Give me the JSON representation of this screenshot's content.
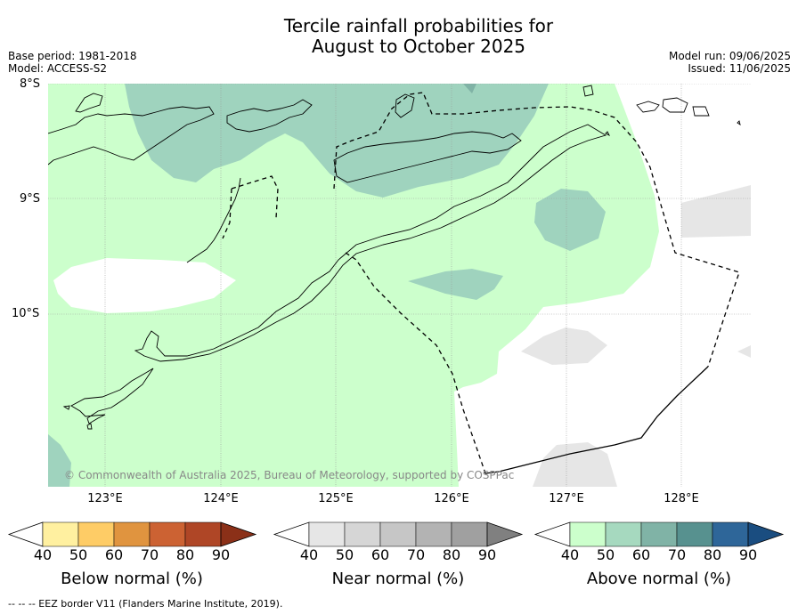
{
  "title_line1": "Tercile rainfall probabilities for",
  "title_line2": "August to October 2025",
  "base_period": "Base period: 1981-2018",
  "model": "Model: ACCESS-S2",
  "model_run": "Model run: 09/06/2025",
  "issued": "Issued: 11/06/2025",
  "lat_labels": [
    "8°S",
    "9°S",
    "10°S"
  ],
  "lon_labels": [
    "123°E",
    "124°E",
    "125°E",
    "126°E",
    "127°E",
    "128°E"
  ],
  "copyright": "© Commonwealth of Australia 2025, Bureau of Meteorology, supported by COSPPac",
  "footer": "--  --  -- EEZ border V11 (Flanders Marine Institute, 2019).",
  "colorbars": [
    {
      "title": "Below normal (%)",
      "ticks": [
        "40",
        "50",
        "60",
        "70",
        "80",
        "90"
      ],
      "colors": [
        "#ffffff",
        "#fff0a0",
        "#fecc66",
        "#e0943f",
        "#cc6233",
        "#af4626",
        "#8b3018"
      ]
    },
    {
      "title": "Near normal (%)",
      "ticks": [
        "40",
        "50",
        "60",
        "70",
        "80",
        "90"
      ],
      "colors": [
        "#ffffff",
        "#e6e6e6",
        "#d6d6d6",
        "#c6c6c6",
        "#b3b3b3",
        "#a0a0a0",
        "#808080"
      ]
    },
    {
      "title": "Above normal (%)",
      "ticks": [
        "40",
        "50",
        "60",
        "70",
        "80",
        "90"
      ],
      "colors": [
        "#ffffff",
        "#ccffcc",
        "#a6d9bf",
        "#80b3a6",
        "#57918f",
        "#2e6699",
        "#1a4d80"
      ]
    }
  ],
  "colors": {
    "above_40_50": "#ccffcc",
    "above_50_60": "#9fd3be",
    "near_40_50": "#e6e6e6",
    "land_outline": "#000000"
  }
}
